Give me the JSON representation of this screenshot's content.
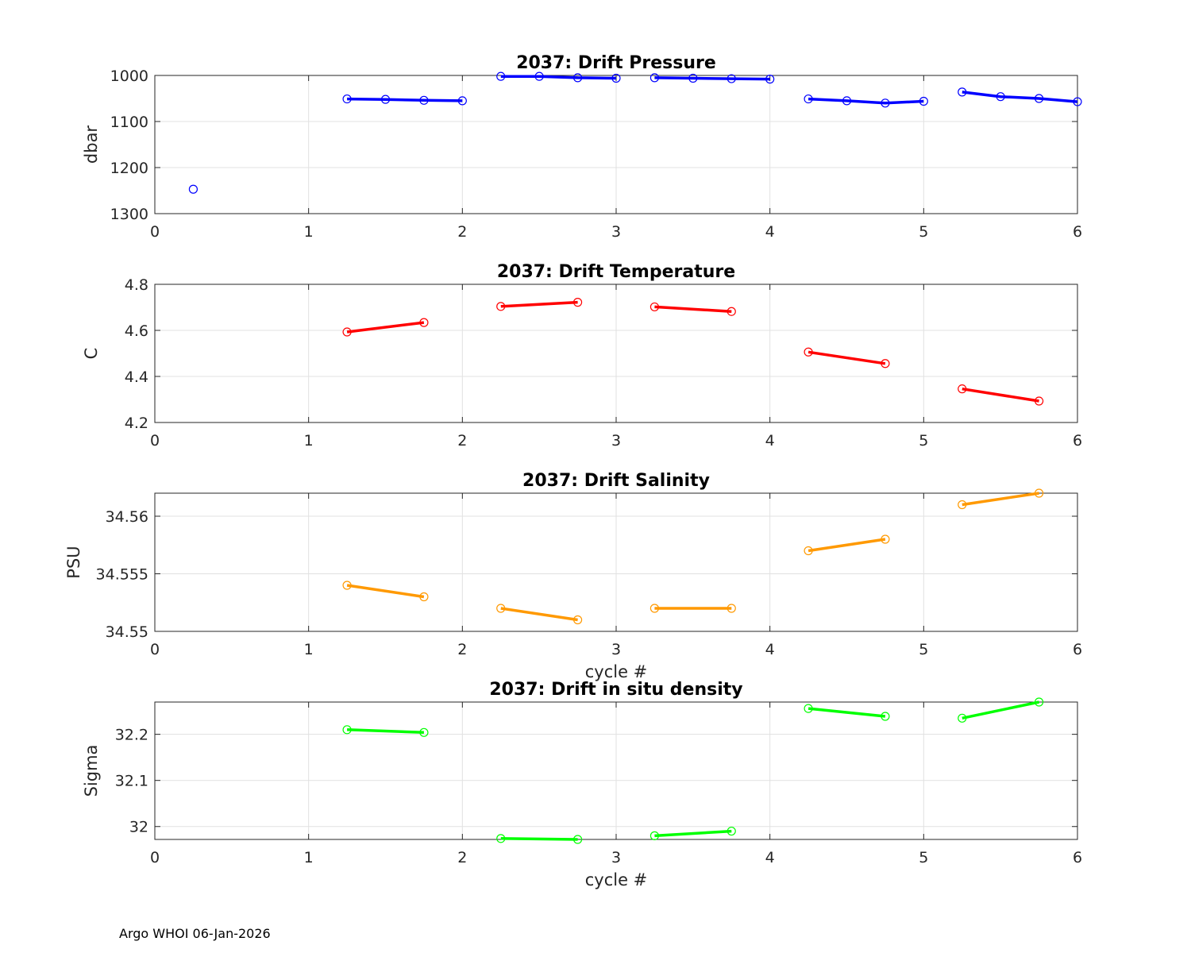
{
  "footer": "Argo WHOI 06-Jan-2026",
  "chart_data": [
    {
      "type": "line",
      "title": "2037: Drift Pressure",
      "xlabel": "",
      "ylabel": "dbar",
      "xlim": [
        0,
        6
      ],
      "ylim": [
        1000,
        1300
      ],
      "y_reversed": true,
      "xticks": [
        0,
        1,
        2,
        3,
        4,
        5,
        6
      ],
      "yticks": [
        1000,
        1100,
        1200,
        1300
      ],
      "ytick_labels": [
        "1000",
        "1100",
        "1200",
        "1300"
      ],
      "color": "#0000ff",
      "grid": true,
      "segments": [
        {
          "x": [
            0.25
          ],
          "y": [
            1247
          ]
        },
        {
          "x": [
            1.25,
            1.5,
            1.75,
            2.0
          ],
          "y": [
            1051,
            1052,
            1054,
            1055
          ]
        },
        {
          "x": [
            2.25,
            2.5,
            2.75,
            3.0
          ],
          "y": [
            1002,
            1002,
            1005,
            1006
          ]
        },
        {
          "x": [
            3.25,
            3.5,
            3.75,
            4.0
          ],
          "y": [
            1005,
            1006,
            1007,
            1008
          ]
        },
        {
          "x": [
            4.25,
            4.5,
            4.75,
            5.0
          ],
          "y": [
            1051,
            1055,
            1060,
            1056
          ]
        },
        {
          "x": [
            5.25,
            5.5,
            5.75,
            6.0
          ],
          "y": [
            1036,
            1046,
            1050,
            1057
          ]
        }
      ]
    },
    {
      "type": "line",
      "title": "2037: Drift Temperature",
      "xlabel": "",
      "ylabel": "C",
      "xlim": [
        0,
        6
      ],
      "ylim": [
        4.2,
        4.8
      ],
      "y_reversed": false,
      "xticks": [
        0,
        1,
        2,
        3,
        4,
        5,
        6
      ],
      "yticks": [
        4.2,
        4.4,
        4.6,
        4.8
      ],
      "ytick_labels": [
        "4.2",
        "4.4",
        "4.6",
        "4.8"
      ],
      "color": "#ff0000",
      "grid": true,
      "segments": [
        {
          "x": [
            1.25,
            1.75
          ],
          "y": [
            4.593,
            4.634
          ]
        },
        {
          "x": [
            2.25,
            2.75
          ],
          "y": [
            4.704,
            4.722
          ]
        },
        {
          "x": [
            3.25,
            3.75
          ],
          "y": [
            4.702,
            4.682
          ]
        },
        {
          "x": [
            4.25,
            4.75
          ],
          "y": [
            4.506,
            4.456
          ]
        },
        {
          "x": [
            5.25,
            5.75
          ],
          "y": [
            4.346,
            4.293
          ]
        }
      ]
    },
    {
      "type": "line",
      "title": "2037: Drift Salinity",
      "xlabel": "cycle #",
      "ylabel": "PSU",
      "xlim": [
        0,
        6
      ],
      "ylim": [
        34.55,
        34.562
      ],
      "y_reversed": false,
      "xticks": [
        0,
        1,
        2,
        3,
        4,
        5,
        6
      ],
      "yticks": [
        34.55,
        34.555,
        34.56
      ],
      "ytick_labels": [
        "34.55",
        "34.555",
        "34.56"
      ],
      "color": "#ff9900",
      "grid": true,
      "segments": [
        {
          "x": [
            1.25,
            1.75
          ],
          "y": [
            34.554,
            34.553
          ]
        },
        {
          "x": [
            2.25,
            2.75
          ],
          "y": [
            34.552,
            34.551
          ]
        },
        {
          "x": [
            3.25,
            3.75
          ],
          "y": [
            34.552,
            34.552
          ]
        },
        {
          "x": [
            4.25,
            4.75
          ],
          "y": [
            34.557,
            34.558
          ]
        },
        {
          "x": [
            5.25,
            5.75
          ],
          "y": [
            34.561,
            34.562
          ]
        }
      ]
    },
    {
      "type": "line",
      "title": "2037: Drift in situ density",
      "xlabel": "cycle #",
      "ylabel": "Sigma",
      "xlim": [
        0,
        6
      ],
      "ylim": [
        31.972,
        32.27
      ],
      "y_reversed": false,
      "xticks": [
        0,
        1,
        2,
        3,
        4,
        5,
        6
      ],
      "yticks": [
        32,
        32.1,
        32.2
      ],
      "ytick_labels": [
        "32",
        "32.1",
        "32.2"
      ],
      "color": "#00ff00",
      "grid": true,
      "segments": [
        {
          "x": [
            1.25,
            1.75
          ],
          "y": [
            32.21,
            32.204
          ]
        },
        {
          "x": [
            2.25,
            2.75
          ],
          "y": [
            31.974,
            31.972
          ]
        },
        {
          "x": [
            3.25,
            3.75
          ],
          "y": [
            31.98,
            31.99
          ]
        },
        {
          "x": [
            4.25,
            4.75
          ],
          "y": [
            32.256,
            32.239
          ]
        },
        {
          "x": [
            5.25,
            5.75
          ],
          "y": [
            32.235,
            32.27
          ]
        }
      ]
    }
  ]
}
